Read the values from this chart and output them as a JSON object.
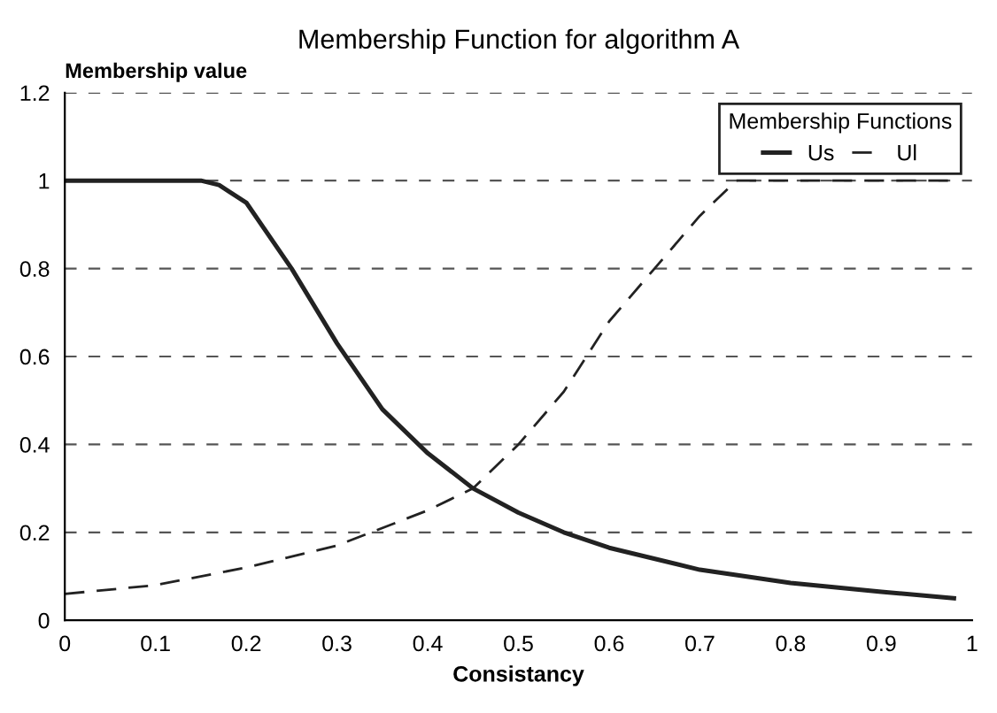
{
  "chart_data": {
    "type": "line",
    "title": "Membership Function for algorithm A",
    "xlabel": "Consistancy",
    "ylabel": "Membership value",
    "legend_title": "Membership Functions",
    "legend": "top right",
    "grid": "y",
    "xlim": [
      0,
      1
    ],
    "ylim": [
      0,
      1.2
    ],
    "xticks": [
      0,
      0.1,
      0.2,
      0.3,
      0.4,
      0.5,
      0.6,
      0.7,
      0.8,
      0.9,
      1
    ],
    "yticks": [
      0,
      0.2,
      0.4,
      0.6,
      0.8,
      1,
      1.2
    ],
    "marker": "none",
    "series": [
      {
        "name": "Us",
        "color": "#222222",
        "line_style": "solid",
        "x": [
          0,
          0.05,
          0.1,
          0.15,
          0.17,
          0.2,
          0.25,
          0.3,
          0.35,
          0.4,
          0.45,
          0.5,
          0.55,
          0.6,
          0.7,
          0.8,
          0.9,
          0.98
        ],
        "values": [
          1,
          1,
          1,
          1,
          0.99,
          0.95,
          0.8,
          0.63,
          0.48,
          0.38,
          0.3,
          0.245,
          0.2,
          0.165,
          0.115,
          0.085,
          0.065,
          0.05
        ]
      },
      {
        "name": "Ul",
        "color": "#222222",
        "line_style": "dashed",
        "x": [
          0,
          0.1,
          0.2,
          0.3,
          0.4,
          0.45,
          0.5,
          0.55,
          0.6,
          0.65,
          0.7,
          0.74,
          0.8,
          0.9,
          0.98
        ],
        "values": [
          0.06,
          0.08,
          0.12,
          0.17,
          0.25,
          0.3,
          0.4,
          0.52,
          0.68,
          0.8,
          0.92,
          1,
          1,
          1,
          1
        ]
      }
    ]
  }
}
